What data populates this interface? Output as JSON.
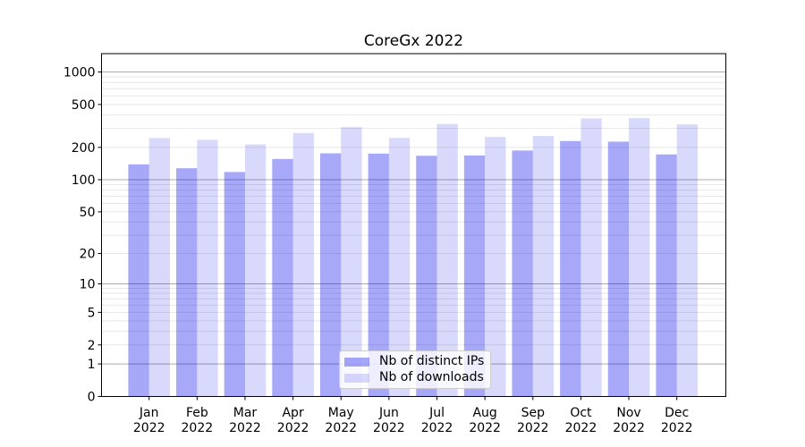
{
  "title": "CoreGx 2022",
  "chart_data": {
    "type": "bar",
    "title": "CoreGx 2022",
    "categories": [
      "Jan",
      "Feb",
      "Mar",
      "Apr",
      "May",
      "Jun",
      "Jul",
      "Aug",
      "Sep",
      "Oct",
      "Nov",
      "Dec"
    ],
    "category_year": "2022",
    "series": [
      {
        "name": "Nb of distinct IPs",
        "color": "rgba(0,0,238,0.34)",
        "solid_color": "#aaaaf8",
        "values": [
          139,
          128,
          118,
          156,
          176,
          175,
          167,
          168,
          187,
          229,
          226,
          172
        ]
      },
      {
        "name": "Nb of downloads",
        "color": "rgba(0,0,238,0.15)",
        "solid_color": "#dcdcf8",
        "values": [
          244,
          235,
          213,
          272,
          308,
          245,
          330,
          250,
          255,
          371,
          374,
          328
        ]
      }
    ],
    "xlabel": "",
    "ylabel": "",
    "yscale": "log1p",
    "yticks": [
      0,
      1,
      2,
      5,
      10,
      20,
      50,
      100,
      200,
      500,
      1000
    ],
    "ylim": [
      0,
      1478
    ],
    "grid": "both",
    "legend_position": "lower center",
    "colors": {
      "grid_major": "#ababab",
      "grid_minor": "#e7e7e7",
      "axis": "#000000",
      "text": "#000000",
      "legend_border": "#cccccc",
      "legend_bg": "rgba(255,255,255,0.8)"
    }
  }
}
